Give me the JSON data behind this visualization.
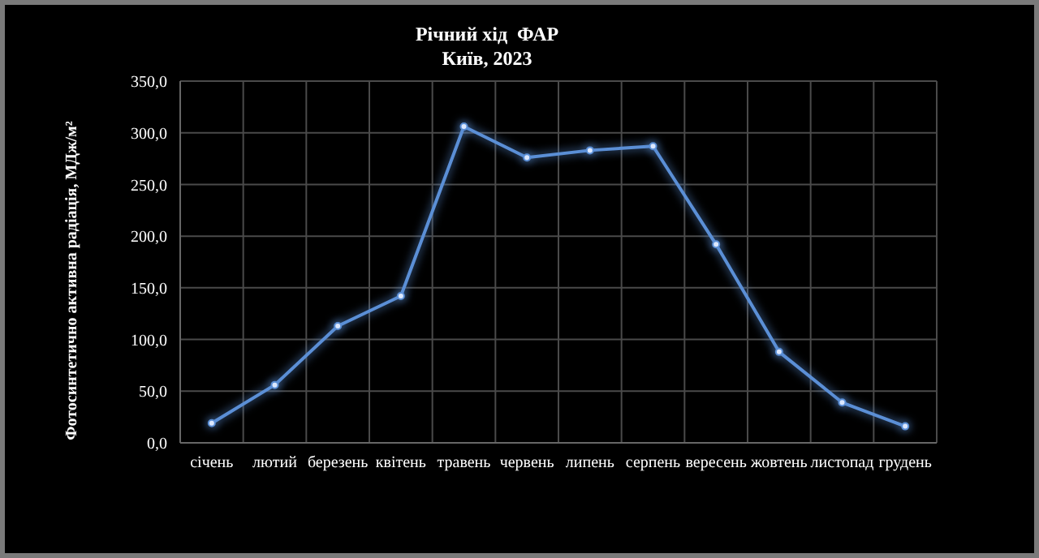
{
  "chart_data": {
    "type": "line",
    "title": "Річний хід  ФАР",
    "subtitle": "Київ, 2023",
    "ylabel": "Фотосинтетично активна радіація, МДж/м²",
    "categories": [
      "січень",
      "лютий",
      "березень",
      "квітень",
      "травень",
      "червень",
      "липень",
      "серпень",
      "вересень",
      "жовтень",
      "листопад",
      "грудень"
    ],
    "series": [
      {
        "color": "#5b8fd6",
        "values": [
          19,
          56,
          113,
          142,
          306,
          276,
          283,
          287,
          192,
          88,
          39,
          16
        ]
      }
    ],
    "ylim": [
      0,
      350
    ],
    "yticks": [
      {
        "value": 0,
        "label": "0,0"
      },
      {
        "value": 50,
        "label": "50,0"
      },
      {
        "value": 100,
        "label": "100,0"
      },
      {
        "value": 150,
        "label": "150,0"
      },
      {
        "value": 200,
        "label": "200,0"
      },
      {
        "value": 250,
        "label": "250,0"
      },
      {
        "value": 300,
        "label": "300,0"
      },
      {
        "value": 350,
        "label": "350,0"
      }
    ],
    "grid": true,
    "legend": false,
    "marker": "circle",
    "line_style": "solid"
  }
}
